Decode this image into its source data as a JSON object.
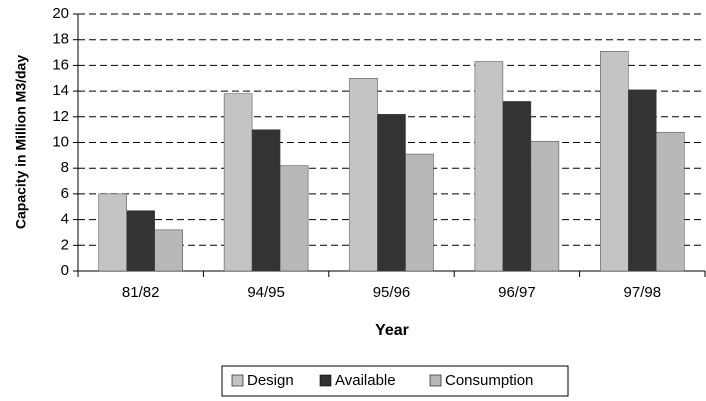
{
  "chart_data": {
    "type": "bar",
    "x_label": "Year",
    "y_label": "Capacity in Million M3/day",
    "categories": [
      "81/82",
      "94/95",
      "95/96",
      "96/97",
      "97/98"
    ],
    "series": [
      {
        "name": "Design",
        "color": "#c4c4c4",
        "values": [
          6.0,
          13.8,
          15.0,
          16.3,
          17.1
        ]
      },
      {
        "name": "Available",
        "color": "#333333",
        "values": [
          4.7,
          11.0,
          12.2,
          13.2,
          14.1
        ]
      },
      {
        "name": "Consumption",
        "color": "#b8b8b8",
        "values": [
          3.2,
          8.2,
          9.1,
          10.1,
          10.8
        ]
      }
    ],
    "ylim": [
      0,
      20
    ],
    "yticks": [
      0,
      2,
      4,
      6,
      8,
      10,
      12,
      14,
      16,
      18,
      20
    ],
    "grid": true,
    "legend": "bottom"
  }
}
